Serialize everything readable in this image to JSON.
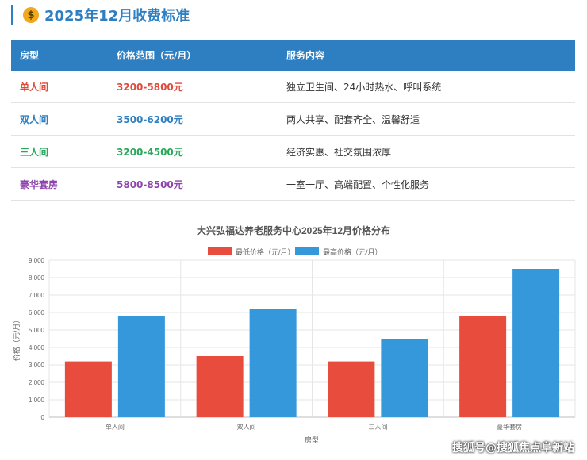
{
  "header": {
    "icon": "money-bag-icon",
    "icon_glyph": "$",
    "title": "2025年12月收费标准"
  },
  "table": {
    "headers": [
      "房型",
      "价格范围（元/月）",
      "服务内容"
    ],
    "rows": [
      {
        "type": "单人间",
        "price": "3200-5800元",
        "service": "独立卫生间、24小时热水、呼叫系统",
        "color": "#e04a3c"
      },
      {
        "type": "双人间",
        "price": "3500-6200元",
        "service": "两人共享、配套齐全、温馨舒适",
        "color": "#2e7fc1"
      },
      {
        "type": "三人间",
        "price": "3200-4500元",
        "service": "经济实惠、社交氛围浓厚",
        "color": "#27a85a"
      },
      {
        "type": "豪华套房",
        "price": "5800-8500元",
        "service": "一室一厅、高端配置、个性化服务",
        "color": "#8e44ad"
      }
    ]
  },
  "chart_data": {
    "type": "bar",
    "title": "大兴弘福达养老服务中心2025年12月价格分布",
    "xlabel": "房型",
    "ylabel": "价格（元/月）",
    "categories": [
      "单人间",
      "双人间",
      "三人间",
      "豪华套房"
    ],
    "series": [
      {
        "name": "最低价格（元/月）",
        "values": [
          3200,
          3500,
          3200,
          5800
        ],
        "color": "#e74c3c"
      },
      {
        "name": "最高价格（元/月）",
        "values": [
          5800,
          6200,
          4500,
          8500
        ],
        "color": "#3498db"
      }
    ],
    "ylim": [
      0,
      9000
    ],
    "yticks": [
      "0",
      "1,000",
      "2,000",
      "3,000",
      "4,000",
      "5,000",
      "6,000",
      "7,000",
      "8,000",
      "9,000"
    ],
    "grid": true,
    "legend": "top-center"
  },
  "watermark": "搜狐号@搜狐焦点阜新站"
}
